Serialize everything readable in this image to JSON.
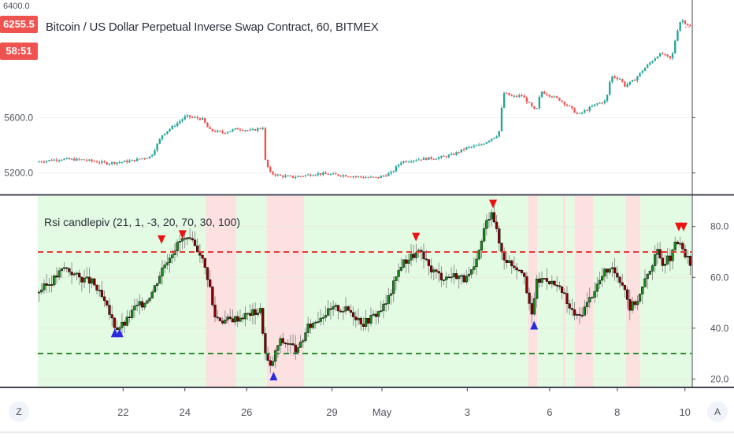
{
  "header": {
    "title": "Bitcoin / US Dollar Perpetual Inverse Swap Contract, 60, BITMEX",
    "last_price": "6255.5",
    "countdown": "58:51",
    "top_price_label": "6400.0"
  },
  "indicator": {
    "title": "Rsi candlepiv (21, 1, -3, 20, 70, 30, 100)",
    "upper_level": 70,
    "lower_level": 30
  },
  "buttons": {
    "left_corner": "Z",
    "right_corner": "A"
  },
  "colors": {
    "up": "#26a69a",
    "down": "#ef5350",
    "rsi_up": "#1b8a1b",
    "rsi_down": "#8b0000",
    "bg_green": "#e3fbe3",
    "bg_red": "#fde0e0",
    "upper_line": "#e53935",
    "lower_line": "#2e8b2e",
    "triangle_up": "#2929e0",
    "triangle_down": "#ee1111"
  },
  "chart_data": [
    {
      "type": "candlestick",
      "title": "Bitcoin / US Dollar Perpetual Inverse Swap Contract, 60, BITMEX",
      "y_ticks": [
        5200.0,
        5600.0
      ],
      "ylim": [
        5050,
        6450
      ],
      "x_ticks": [
        "22",
        "24",
        "26",
        "29",
        "May",
        "3",
        "6",
        "8",
        "10"
      ],
      "close_path": [
        [
          0,
          5280
        ],
        [
          0.05,
          5300
        ],
        [
          0.1,
          5295
        ],
        [
          0.15,
          5270
        ],
        [
          0.2,
          5285
        ],
        [
          0.245,
          5320
        ],
        [
          0.27,
          5480
        ],
        [
          0.29,
          5530
        ],
        [
          0.32,
          5610
        ],
        [
          0.355,
          5590
        ],
        [
          0.37,
          5510
        ],
        [
          0.4,
          5490
        ],
        [
          0.43,
          5520
        ],
        [
          0.46,
          5505
        ],
        [
          0.485,
          5530
        ],
        [
          0.49,
          5290
        ],
        [
          0.5,
          5200
        ],
        [
          0.52,
          5180
        ],
        [
          0.55,
          5170
        ],
        [
          0.6,
          5195
        ],
        [
          0.65,
          5185
        ],
        [
          0.7,
          5170
        ],
        [
          0.73,
          5165
        ],
        [
          0.76,
          5200
        ],
        [
          0.78,
          5280
        ],
        [
          0.82,
          5300
        ],
        [
          0.86,
          5310
        ],
        [
          0.89,
          5330
        ],
        [
          0.92,
          5380
        ],
        [
          0.95,
          5400
        ],
        [
          0.97,
          5440
        ],
        [
          0.99,
          5480
        ],
        [
          1.0,
          5780
        ],
        [
          1.02,
          5750
        ],
        [
          1.04,
          5760
        ],
        [
          1.06,
          5680
        ],
        [
          1.07,
          5640
        ],
        [
          1.08,
          5790
        ],
        [
          1.1,
          5760
        ],
        [
          1.12,
          5730
        ],
        [
          1.14,
          5680
        ],
        [
          1.16,
          5620
        ],
        [
          1.18,
          5660
        ],
        [
          1.2,
          5700
        ],
        [
          1.22,
          5720
        ],
        [
          1.23,
          5900
        ],
        [
          1.25,
          5880
        ],
        [
          1.26,
          5830
        ],
        [
          1.28,
          5870
        ],
        [
          1.3,
          5950
        ],
        [
          1.33,
          6050
        ],
        [
          1.34,
          6060
        ],
        [
          1.36,
          6020
        ],
        [
          1.37,
          6200
        ],
        [
          1.38,
          6310
        ],
        [
          1.4,
          6260
        ]
      ],
      "last_price": 6255.5
    },
    {
      "type": "line",
      "title": "Rsi candlepiv (21, 1, -3, 20, 70, 30, 100)",
      "y_ticks": [
        20.0,
        40.0,
        60.0,
        80.0
      ],
      "ylim": [
        17,
        92
      ],
      "levels": [
        70,
        30
      ],
      "rsi_path": [
        [
          0,
          54
        ],
        [
          0.03,
          58
        ],
        [
          0.06,
          64
        ],
        [
          0.09,
          60
        ],
        [
          0.12,
          58
        ],
        [
          0.14,
          52
        ],
        [
          0.16,
          44
        ],
        [
          0.17,
          40
        ],
        [
          0.19,
          42
        ],
        [
          0.21,
          48
        ],
        [
          0.23,
          50
        ],
        [
          0.25,
          55
        ],
        [
          0.27,
          64
        ],
        [
          0.29,
          70
        ],
        [
          0.31,
          75
        ],
        [
          0.33,
          74
        ],
        [
          0.35,
          70
        ],
        [
          0.37,
          58
        ],
        [
          0.38,
          45
        ],
        [
          0.4,
          43
        ],
        [
          0.43,
          44
        ],
        [
          0.46,
          46
        ],
        [
          0.48,
          47
        ],
        [
          0.49,
          30
        ],
        [
          0.5,
          24
        ],
        [
          0.52,
          35
        ],
        [
          0.54,
          34
        ],
        [
          0.56,
          31
        ],
        [
          0.58,
          40
        ],
        [
          0.61,
          45
        ],
        [
          0.64,
          48
        ],
        [
          0.67,
          47
        ],
        [
          0.7,
          42
        ],
        [
          0.73,
          46
        ],
        [
          0.75,
          50
        ],
        [
          0.78,
          65
        ],
        [
          0.8,
          68
        ],
        [
          0.82,
          70
        ],
        [
          0.84,
          64
        ],
        [
          0.87,
          60
        ],
        [
          0.9,
          61
        ],
        [
          0.92,
          59
        ],
        [
          0.94,
          64
        ],
        [
          0.96,
          80
        ],
        [
          0.975,
          87
        ],
        [
          0.99,
          74
        ],
        [
          1.0,
          68
        ],
        [
          1.02,
          65
        ],
        [
          1.04,
          63
        ],
        [
          1.05,
          54
        ],
        [
          1.06,
          44
        ],
        [
          1.07,
          58
        ],
        [
          1.09,
          60
        ],
        [
          1.11,
          57
        ],
        [
          1.13,
          53
        ],
        [
          1.14,
          48
        ],
        [
          1.16,
          44
        ],
        [
          1.18,
          50
        ],
        [
          1.2,
          57
        ],
        [
          1.22,
          63
        ],
        [
          1.24,
          62
        ],
        [
          1.26,
          56
        ],
        [
          1.27,
          48
        ],
        [
          1.29,
          52
        ],
        [
          1.31,
          62
        ],
        [
          1.33,
          70
        ],
        [
          1.34,
          66
        ],
        [
          1.36,
          68
        ],
        [
          1.37,
          74
        ],
        [
          1.38,
          72
        ],
        [
          1.4,
          65
        ]
      ],
      "triangles_up": [
        [
          0.165,
          38
        ],
        [
          0.175,
          38
        ],
        [
          0.505,
          21
        ],
        [
          1.063,
          41
        ]
      ],
      "triangles_down": [
        [
          0.265,
          75
        ],
        [
          0.31,
          77
        ],
        [
          0.81,
          76
        ],
        [
          0.975,
          89
        ],
        [
          1.373,
          80
        ],
        [
          1.383,
          80
        ]
      ],
      "shaded_green_ranges": [
        [
          0.0,
          0.36
        ],
        [
          0.425,
          0.49
        ],
        [
          0.57,
          1.05
        ],
        [
          1.07,
          1.125
        ],
        [
          1.13,
          1.15
        ],
        [
          1.19,
          1.26
        ],
        [
          1.29,
          1.4
        ]
      ],
      "shaded_red_ranges": [
        [
          0.36,
          0.425
        ],
        [
          0.49,
          0.57
        ],
        [
          1.05,
          1.07
        ],
        [
          1.125,
          1.13
        ],
        [
          1.15,
          1.19
        ],
        [
          1.26,
          1.29
        ]
      ]
    }
  ]
}
